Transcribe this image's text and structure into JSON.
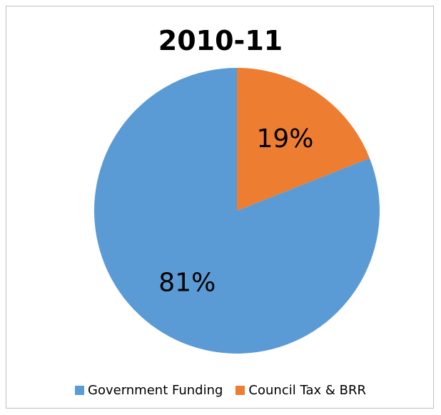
{
  "chart_data": {
    "type": "pie",
    "title": "2010-11",
    "categories": [
      "Government Funding",
      "Council Tax & BRR"
    ],
    "values": [
      81,
      19
    ],
    "labels": [
      "81%",
      "19%"
    ],
    "colors": [
      "#5b9bd5",
      "#ed7d31"
    ],
    "legend": "bottom"
  }
}
